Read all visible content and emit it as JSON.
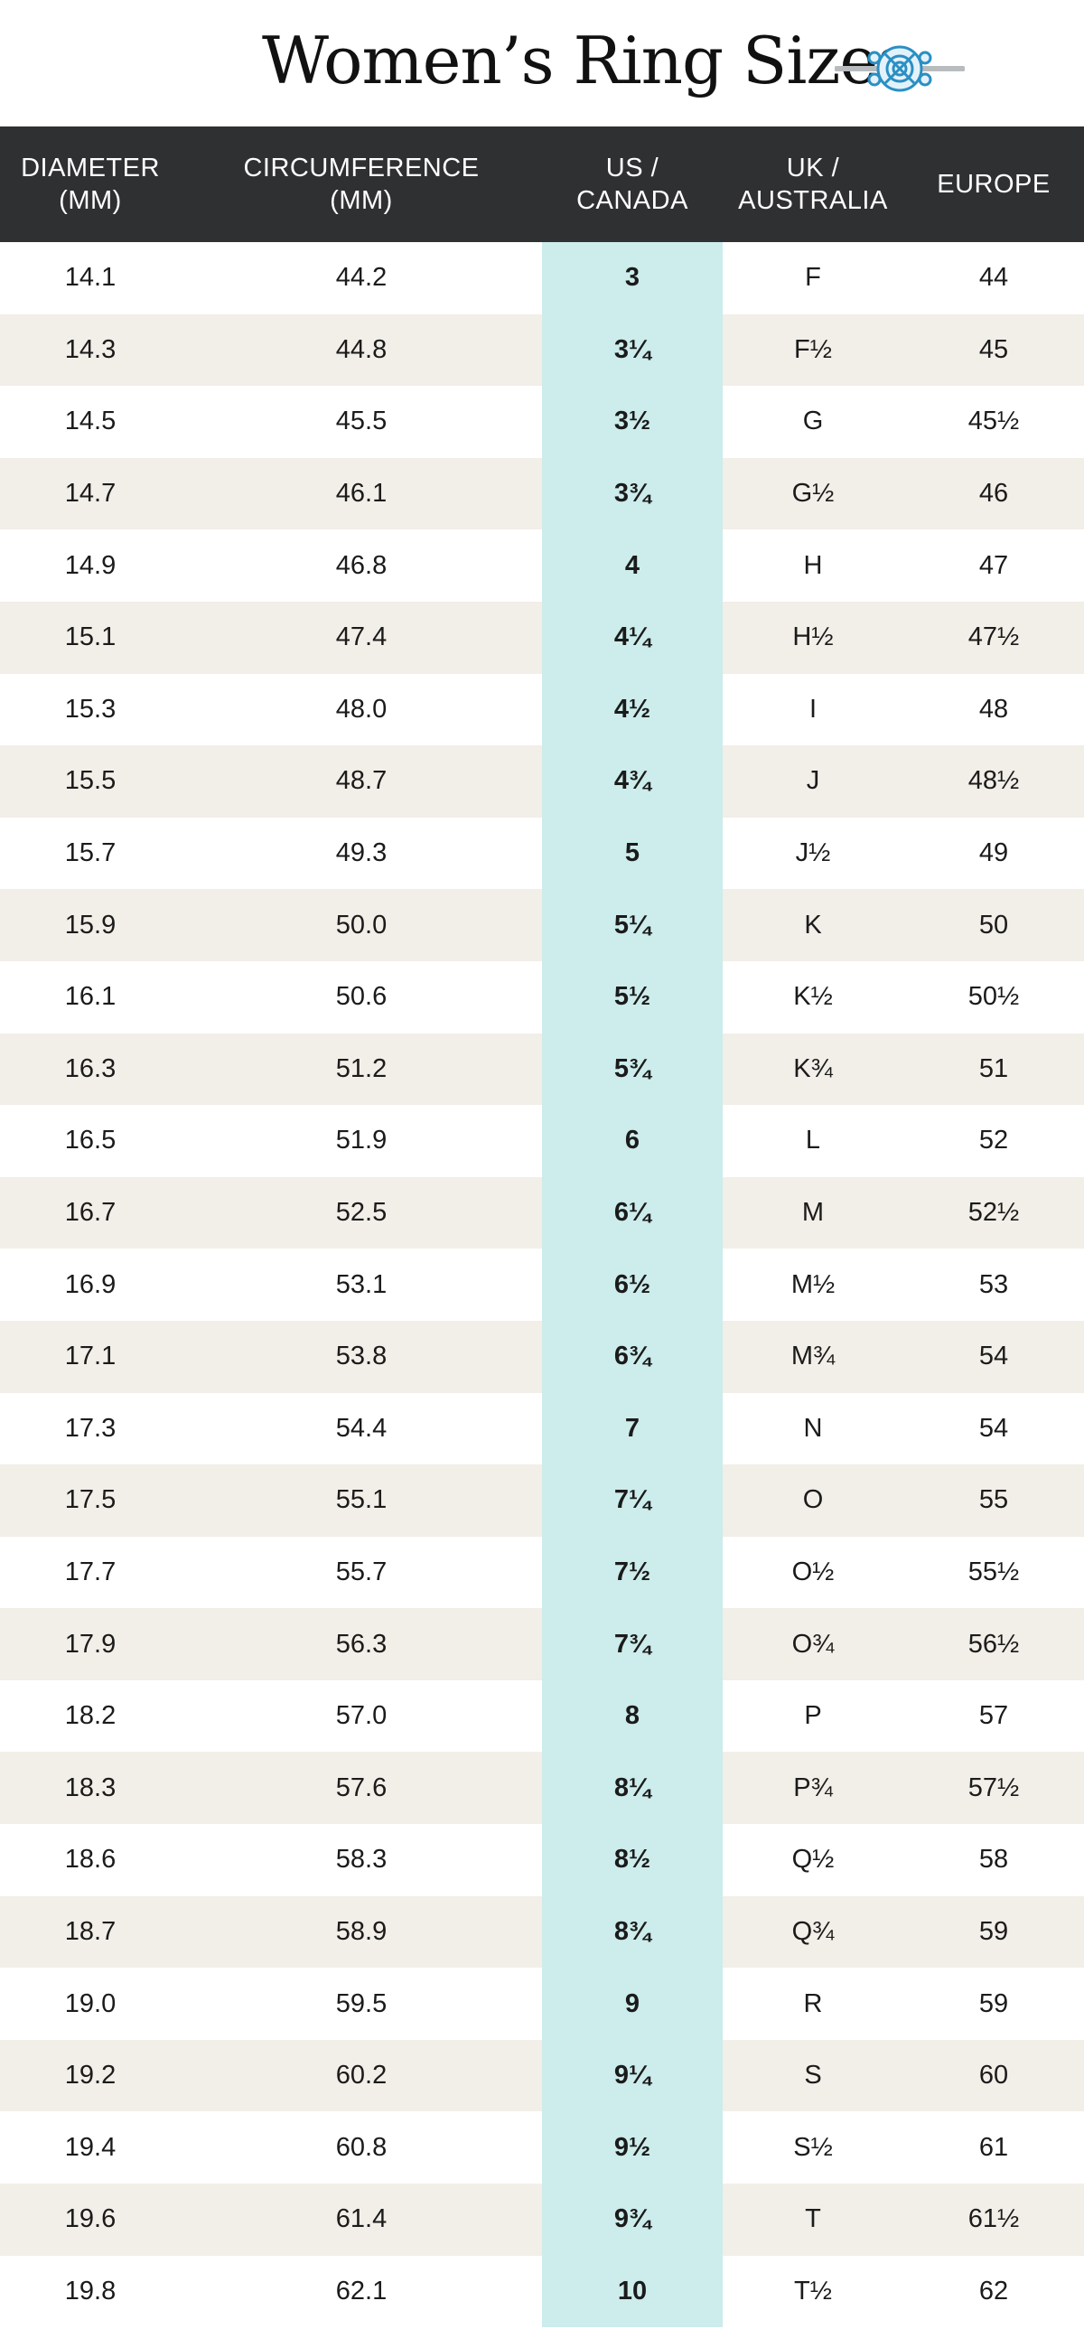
{
  "title": "Women’s Ring Sizes",
  "accent_color": "#2a8fc4",
  "icon": "ring-icon",
  "header": {
    "diameter": [
      "DIAMETER",
      "(MM)"
    ],
    "circumference": [
      "CIRCUMFERENCE",
      "(MM)"
    ],
    "us": [
      "US /",
      "CANADA"
    ],
    "uk": [
      "UK /",
      "AUSTRALIA"
    ],
    "europe": [
      "EUROPE"
    ]
  },
  "rows": [
    {
      "diameter": "14.1",
      "circumference": "44.2",
      "us": "3",
      "uk": "F",
      "europe": "44"
    },
    {
      "diameter": "14.3",
      "circumference": "44.8",
      "us": "3¼",
      "uk": "F½",
      "europe": "45"
    },
    {
      "diameter": "14.5",
      "circumference": "45.5",
      "us": "3½",
      "uk": "G",
      "europe": "45½"
    },
    {
      "diameter": "14.7",
      "circumference": "46.1",
      "us": "3¾",
      "uk": "G½",
      "europe": "46"
    },
    {
      "diameter": "14.9",
      "circumference": "46.8",
      "us": "4",
      "uk": "H",
      "europe": "47"
    },
    {
      "diameter": "15.1",
      "circumference": "47.4",
      "us": "4¼",
      "uk": "H½",
      "europe": "47½"
    },
    {
      "diameter": "15.3",
      "circumference": "48.0",
      "us": "4½",
      "uk": "I",
      "europe": "48"
    },
    {
      "diameter": "15.5",
      "circumference": "48.7",
      "us": "4¾",
      "uk": "J",
      "europe": "48½"
    },
    {
      "diameter": "15.7",
      "circumference": "49.3",
      "us": "5",
      "uk": "J½",
      "europe": "49"
    },
    {
      "diameter": "15.9",
      "circumference": "50.0",
      "us": "5¼",
      "uk": "K",
      "europe": "50"
    },
    {
      "diameter": "16.1",
      "circumference": "50.6",
      "us": "5½",
      "uk": "K½",
      "europe": "50½"
    },
    {
      "diameter": "16.3",
      "circumference": "51.2",
      "us": "5¾",
      "uk": "K¾",
      "europe": "51"
    },
    {
      "diameter": "16.5",
      "circumference": "51.9",
      "us": "6",
      "uk": "L",
      "europe": "52"
    },
    {
      "diameter": "16.7",
      "circumference": "52.5",
      "us": "6¼",
      "uk": "M",
      "europe": "52½"
    },
    {
      "diameter": "16.9",
      "circumference": "53.1",
      "us": "6½",
      "uk": "M½",
      "europe": "53"
    },
    {
      "diameter": "17.1",
      "circumference": "53.8",
      "us": "6¾",
      "uk": "M¾",
      "europe": "54"
    },
    {
      "diameter": "17.3",
      "circumference": "54.4",
      "us": "7",
      "uk": "N",
      "europe": "54"
    },
    {
      "diameter": "17.5",
      "circumference": "55.1",
      "us": "7¼",
      "uk": "O",
      "europe": "55"
    },
    {
      "diameter": "17.7",
      "circumference": "55.7",
      "us": "7½",
      "uk": "O½",
      "europe": "55½"
    },
    {
      "diameter": "17.9",
      "circumference": "56.3",
      "us": "7¾",
      "uk": "O¾",
      "europe": "56½"
    },
    {
      "diameter": "18.2",
      "circumference": "57.0",
      "us": "8",
      "uk": "P",
      "europe": "57"
    },
    {
      "diameter": "18.3",
      "circumference": "57.6",
      "us": "8¼",
      "uk": "P¾",
      "europe": "57½"
    },
    {
      "diameter": "18.6",
      "circumference": "58.3",
      "us": "8½",
      "uk": "Q½",
      "europe": "58"
    },
    {
      "diameter": "18.7",
      "circumference": "58.9",
      "us": "8¾",
      "uk": "Q¾",
      "europe": "59"
    },
    {
      "diameter": "19.0",
      "circumference": "59.5",
      "us": "9",
      "uk": "R",
      "europe": "59"
    },
    {
      "diameter": "19.2",
      "circumference": "60.2",
      "us": "9¼",
      "uk": "S",
      "europe": "60"
    },
    {
      "diameter": "19.4",
      "circumference": "60.8",
      "us": "9½",
      "uk": "S½",
      "europe": "61"
    },
    {
      "diameter": "19.6",
      "circumference": "61.4",
      "us": "9¾",
      "uk": "T",
      "europe": "61½"
    },
    {
      "diameter": "19.8",
      "circumference": "62.1",
      "us": "10",
      "uk": "T½",
      "europe": "62"
    }
  ]
}
